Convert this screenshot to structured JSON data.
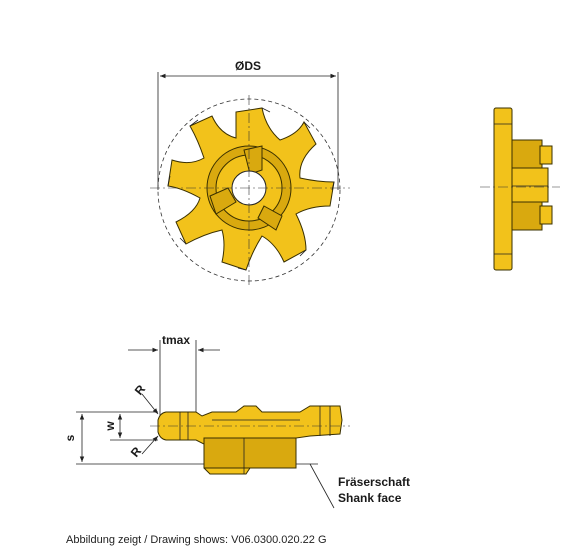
{
  "labels": {
    "diameter": "ØDS",
    "tmax": "tmax",
    "radius_top": "R",
    "radius_bottom": "R",
    "width": "w",
    "thickness": "s",
    "shank_de": "Fräserschaft",
    "shank_en": "Shank face"
  },
  "caption": "Abbildung zeigt / Drawing shows: V06.0300.020.22 G",
  "colors": {
    "insert": "#f2c21b",
    "insert_shade": "#d9a90f",
    "line": "#222222"
  }
}
